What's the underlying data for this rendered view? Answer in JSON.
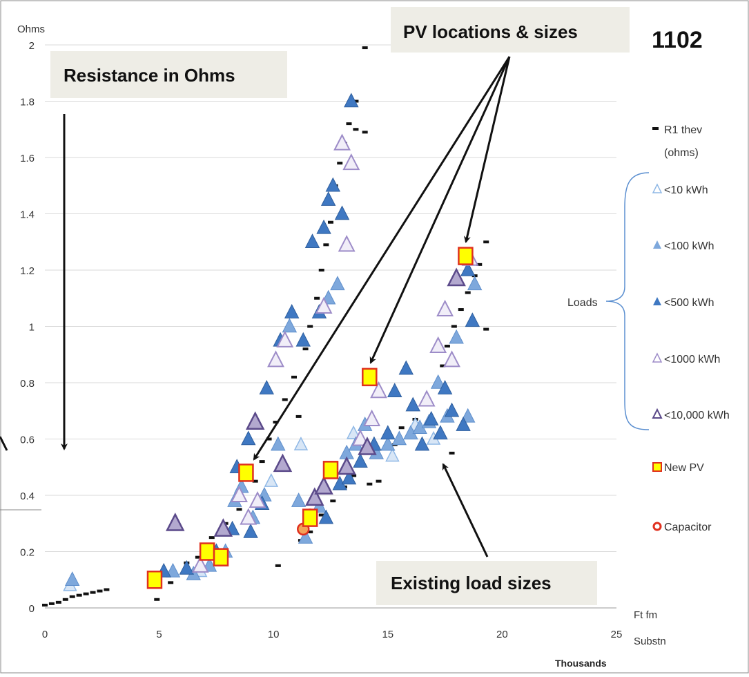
{
  "figure_id": "1102",
  "callouts": {
    "resistance": "Resistance in Ohms",
    "pv": "PV locations & sizes",
    "existing": "Existing load sizes"
  },
  "legend": {
    "r1": "R1 thev (ohms)",
    "r1_line1": "R1 thev",
    "r1_line2": "(ohms)",
    "lt10": "<10 kWh",
    "lt100": "<100 kWh",
    "lt500": "<500 kWh",
    "lt1000": "<1000 kWh",
    "lt10000": "<10,000 kWh",
    "new_pv": "New PV",
    "capacitor": "Capacitor",
    "loads": "Loads"
  },
  "colors": {
    "lt10": "#8fb8e6",
    "lt100": "#7ea8dc",
    "lt500": "#3f78c2",
    "lt1000": "#9d8cc8",
    "lt10000": "#5b4a8a",
    "pv_fill": "#ffff00",
    "pv_stroke": "#e0301e",
    "capacitor": "#e0301e",
    "dash": "#111111",
    "grid": "#d9d9d9"
  },
  "chart_data": {
    "type": "scatter",
    "ylabel": "Ohms",
    "xlabel_line1": "Ft fm",
    "xlabel_line2": "Substn",
    "x_units": "Thousands",
    "xlim": [
      0,
      25
    ],
    "ylim": [
      0,
      2
    ],
    "x_ticks": [
      0,
      5,
      10,
      15,
      20,
      25
    ],
    "y_ticks": [
      0,
      0.2,
      0.4,
      0.6,
      0.8,
      1,
      1.2,
      1.4,
      1.6,
      1.8,
      2
    ],
    "grid": true,
    "legend_position": "right",
    "series": [
      {
        "name": "New PV",
        "marker": "square",
        "points": [
          [
            4.8,
            0.1
          ],
          [
            7.1,
            0.2
          ],
          [
            7.7,
            0.18
          ],
          [
            8.8,
            0.48
          ],
          [
            11.6,
            0.32
          ],
          [
            12.5,
            0.49
          ],
          [
            14.2,
            0.82
          ],
          [
            18.4,
            1.25
          ]
        ]
      },
      {
        "name": "Capacitor",
        "marker": "circle",
        "points": [
          [
            11.3,
            0.28
          ],
          [
            11.6,
            0.33
          ]
        ]
      },
      {
        "name": "<10,000 kWh",
        "marker": "triangle-open-dark",
        "points": [
          [
            5.7,
            0.3
          ],
          [
            7.8,
            0.28
          ],
          [
            9.2,
            0.66
          ],
          [
            10.4,
            0.51
          ],
          [
            11.8,
            0.39
          ],
          [
            12.2,
            0.43
          ],
          [
            13.2,
            0.5
          ],
          [
            14.1,
            0.57
          ],
          [
            18.0,
            1.17
          ]
        ]
      },
      {
        "name": "<1000 kWh",
        "marker": "triangle-open-light",
        "points": [
          [
            6.8,
            0.15
          ],
          [
            8.5,
            0.4
          ],
          [
            8.9,
            0.32
          ],
          [
            9.3,
            0.38
          ],
          [
            10.1,
            0.88
          ],
          [
            10.5,
            0.95
          ],
          [
            12.2,
            1.07
          ],
          [
            13.0,
            1.65
          ],
          [
            13.2,
            1.29
          ],
          [
            13.4,
            1.58
          ],
          [
            13.8,
            0.6
          ],
          [
            14.3,
            0.67
          ],
          [
            14.6,
            0.77
          ],
          [
            16.7,
            0.74
          ],
          [
            17.2,
            0.93
          ],
          [
            17.5,
            1.06
          ],
          [
            17.8,
            0.88
          ],
          [
            18.6,
            1.24
          ]
        ]
      },
      {
        "name": "<500 kWh",
        "marker": "triangle-dark",
        "points": [
          [
            5.2,
            0.13
          ],
          [
            6.2,
            0.14
          ],
          [
            7.5,
            0.2
          ],
          [
            8.2,
            0.28
          ],
          [
            8.4,
            0.5
          ],
          [
            8.9,
            0.6
          ],
          [
            9.0,
            0.27
          ],
          [
            9.5,
            0.37
          ],
          [
            9.7,
            0.78
          ],
          [
            10.3,
            0.95
          ],
          [
            10.8,
            1.05
          ],
          [
            11.3,
            0.95
          ],
          [
            11.7,
            1.3
          ],
          [
            12.0,
            1.05
          ],
          [
            12.2,
            1.35
          ],
          [
            12.4,
            1.45
          ],
          [
            12.6,
            1.5
          ],
          [
            13.0,
            1.4
          ],
          [
            13.4,
            1.8
          ],
          [
            12.3,
            0.32
          ],
          [
            12.9,
            0.44
          ],
          [
            13.3,
            0.46
          ],
          [
            13.8,
            0.52
          ],
          [
            14.4,
            0.58
          ],
          [
            15.0,
            0.62
          ],
          [
            15.3,
            0.77
          ],
          [
            15.8,
            0.85
          ],
          [
            16.1,
            0.72
          ],
          [
            16.5,
            0.58
          ],
          [
            16.9,
            0.67
          ],
          [
            17.3,
            0.62
          ],
          [
            17.5,
            0.78
          ],
          [
            17.8,
            0.7
          ],
          [
            18.3,
            0.65
          ],
          [
            18.7,
            1.02
          ],
          [
            18.5,
            1.2
          ]
        ]
      },
      {
        "name": "<100 kWh",
        "marker": "triangle-mid",
        "points": [
          [
            1.2,
            0.1
          ],
          [
            5.6,
            0.13
          ],
          [
            6.5,
            0.12
          ],
          [
            7.2,
            0.15
          ],
          [
            7.9,
            0.2
          ],
          [
            8.3,
            0.38
          ],
          [
            8.6,
            0.43
          ],
          [
            9.1,
            0.32
          ],
          [
            9.6,
            0.4
          ],
          [
            10.2,
            0.58
          ],
          [
            10.7,
            1.0
          ],
          [
            11.1,
            0.38
          ],
          [
            11.4,
            0.25
          ],
          [
            12.0,
            0.36
          ],
          [
            12.4,
            1.1
          ],
          [
            12.8,
            1.15
          ],
          [
            13.2,
            0.55
          ],
          [
            13.6,
            0.58
          ],
          [
            14.0,
            0.65
          ],
          [
            14.5,
            0.55
          ],
          [
            15.0,
            0.58
          ],
          [
            15.5,
            0.6
          ],
          [
            16.0,
            0.62
          ],
          [
            16.4,
            0.64
          ],
          [
            16.8,
            0.66
          ],
          [
            17.2,
            0.8
          ],
          [
            17.6,
            0.68
          ],
          [
            18.0,
            0.96
          ],
          [
            18.5,
            0.68
          ],
          [
            18.8,
            1.15
          ]
        ]
      },
      {
        "name": "<10 kWh",
        "marker": "triangle-open-light2",
        "points": [
          [
            1.1,
            0.08
          ],
          [
            6.8,
            0.13
          ],
          [
            9.9,
            0.45
          ],
          [
            11.2,
            0.58
          ],
          [
            13.5,
            0.62
          ],
          [
            15.2,
            0.54
          ],
          [
            16.2,
            0.65
          ],
          [
            17.0,
            0.6
          ]
        ]
      },
      {
        "name": "R1 thev (ohms)",
        "marker": "dash",
        "points": [
          [
            0.0,
            0.01
          ],
          [
            0.3,
            0.015
          ],
          [
            0.6,
            0.02
          ],
          [
            0.9,
            0.03
          ],
          [
            1.2,
            0.04
          ],
          [
            1.5,
            0.045
          ],
          [
            1.8,
            0.05
          ],
          [
            2.1,
            0.055
          ],
          [
            2.4,
            0.06
          ],
          [
            2.7,
            0.065
          ],
          [
            4.9,
            0.03
          ],
          [
            5.5,
            0.09
          ],
          [
            6.2,
            0.16
          ],
          [
            6.7,
            0.18
          ],
          [
            7.3,
            0.25
          ],
          [
            7.9,
            0.3
          ],
          [
            8.5,
            0.35
          ],
          [
            9.2,
            0.45
          ],
          [
            9.5,
            0.52
          ],
          [
            9.8,
            0.6
          ],
          [
            10.1,
            0.66
          ],
          [
            10.5,
            0.74
          ],
          [
            10.2,
            0.15
          ],
          [
            10.9,
            0.82
          ],
          [
            11.1,
            0.68
          ],
          [
            11.4,
            0.92
          ],
          [
            11.6,
            1.0
          ],
          [
            11.9,
            1.1
          ],
          [
            12.1,
            1.2
          ],
          [
            12.3,
            1.29
          ],
          [
            12.5,
            1.37
          ],
          [
            12.7,
            1.5
          ],
          [
            12.9,
            1.58
          ],
          [
            13.1,
            1.65
          ],
          [
            13.3,
            1.72
          ],
          [
            13.6,
            1.7
          ],
          [
            14.0,
            1.69
          ],
          [
            14.0,
            1.99
          ],
          [
            13.6,
            1.8
          ],
          [
            11.2,
            0.24
          ],
          [
            11.6,
            0.27
          ],
          [
            12.1,
            0.33
          ],
          [
            12.6,
            0.38
          ],
          [
            13.1,
            0.43
          ],
          [
            13.5,
            0.47
          ],
          [
            14.2,
            0.44
          ],
          [
            14.6,
            0.45
          ],
          [
            14.4,
            0.84
          ],
          [
            15.3,
            0.58
          ],
          [
            15.6,
            0.64
          ],
          [
            16.2,
            0.67
          ],
          [
            16.8,
            0.73
          ],
          [
            17.1,
            0.79
          ],
          [
            17.4,
            0.86
          ],
          [
            17.6,
            0.93
          ],
          [
            17.9,
            1.0
          ],
          [
            18.2,
            1.06
          ],
          [
            18.5,
            1.12
          ],
          [
            18.8,
            1.18
          ],
          [
            19.0,
            1.22
          ],
          [
            19.3,
            1.3
          ],
          [
            19.3,
            0.99
          ],
          [
            17.8,
            0.55
          ]
        ]
      }
    ]
  }
}
